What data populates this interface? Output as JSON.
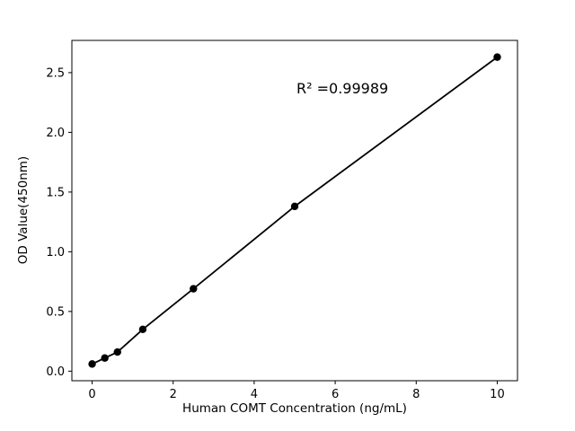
{
  "chart_data": {
    "type": "scatter",
    "title": "",
    "xlabel": "Human COMT Concentration (ng/mL)",
    "ylabel": "OD Value(450nm)",
    "annotation": "R² =0.99989",
    "x": [
      0,
      0.3125,
      0.625,
      1.25,
      2.5,
      5,
      10
    ],
    "y": [
      0.06,
      0.11,
      0.16,
      0.35,
      0.69,
      1.38,
      2.63
    ],
    "xlim": [
      -0.5,
      10.5
    ],
    "ylim": [
      -0.08,
      2.77
    ],
    "xticks": [
      0,
      2,
      4,
      6,
      8,
      10
    ],
    "yticks": [
      0.0,
      0.5,
      1.0,
      1.5,
      2.0,
      2.5
    ],
    "grid": false,
    "legend": "none",
    "line_color": "#000000",
    "marker_color": "#000000",
    "background_color": "#ffffff"
  }
}
